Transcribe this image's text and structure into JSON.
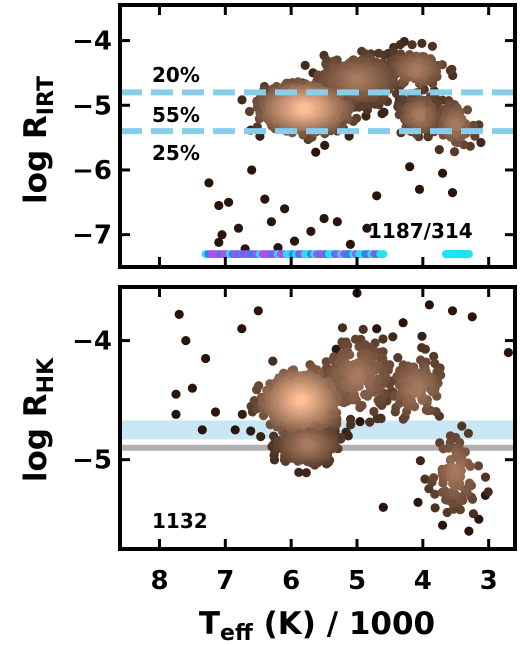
{
  "chart_data": [
    {
      "type": "scatter",
      "panel": "top",
      "ylabel": "log R",
      "ylabel_sub": "IRT",
      "xlabel": "",
      "xlim": [
        8.6,
        2.6
      ],
      "ylim": [
        -7.5,
        -3.45
      ],
      "xticks": [
        "8",
        "7",
        "6",
        "5",
        "4",
        "3"
      ],
      "yticks": [
        -4,
        -5,
        -6,
        -7
      ],
      "ytick_labels": [
        "−4",
        "−5",
        "−6",
        "−7"
      ],
      "reference_lines": [
        {
          "y": -4.8,
          "style": "dashed",
          "color": "#87ceeb"
        },
        {
          "y": -5.4,
          "style": "dashed",
          "color": "#87ceeb"
        }
      ],
      "annotations": [
        "20%",
        "55%",
        "25%",
        "1187/314"
      ],
      "density_clusters": [
        {
          "teff": 5.8,
          "value": -5.05,
          "spread_x": 0.5,
          "spread_y": 0.28,
          "n": 900
        },
        {
          "teff": 5.0,
          "value": -4.6,
          "spread_x": 0.5,
          "spread_y": 0.3,
          "n": 300
        },
        {
          "teff": 4.1,
          "value": -4.45,
          "spread_x": 0.35,
          "spread_y": 0.25,
          "n": 150
        },
        {
          "teff": 4.05,
          "value": -5.15,
          "spread_x": 0.25,
          "spread_y": 0.25,
          "n": 120
        },
        {
          "teff": 3.5,
          "value": -5.3,
          "spread_x": 0.25,
          "spread_y": 0.3,
          "n": 80
        }
      ],
      "outliers": [
        [
          7.25,
          -6.2
        ],
        [
          7.1,
          -6.55
        ],
        [
          7.05,
          -7.0
        ],
        [
          6.95,
          -6.5
        ],
        [
          6.8,
          -6.9
        ],
        [
          6.6,
          -6.0
        ],
        [
          6.4,
          -6.45
        ],
        [
          6.3,
          -6.8
        ],
        [
          6.1,
          -6.6
        ],
        [
          5.95,
          -7.1
        ],
        [
          5.7,
          -6.95
        ],
        [
          5.5,
          -6.75
        ],
        [
          5.3,
          -6.8
        ],
        [
          5.1,
          -7.15
        ],
        [
          4.85,
          -6.9
        ],
        [
          4.7,
          -6.4
        ],
        [
          4.2,
          -5.95
        ],
        [
          4.05,
          -6.3
        ],
        [
          3.7,
          -6.05
        ],
        [
          3.55,
          -6.35
        ],
        [
          7.1,
          -7.12
        ],
        [
          6.7,
          -7.22
        ],
        [
          6.2,
          -7.2
        ]
      ],
      "flag_strips": [
        {
          "teff_min": 7.3,
          "teff_max": 4.6,
          "value": -7.3,
          "colors": [
            "#1fe3f0",
            "#b04cf0",
            "#3b7bf0"
          ]
        },
        {
          "teff_min": 3.65,
          "teff_max": 3.3,
          "value": -7.3,
          "colors": [
            "#1fe3f0"
          ]
        }
      ]
    },
    {
      "type": "scatter",
      "panel": "bottom",
      "ylabel": "log R",
      "ylabel_sub": "HK",
      "xlabel": "T",
      "xlabel_sub": "eff",
      "xlabel_tail": " (K) / 1000",
      "xlim": [
        8.6,
        2.6
      ],
      "ylim": [
        -5.75,
        -3.55
      ],
      "xticks": [
        "8",
        "7",
        "6",
        "5",
        "4",
        "3"
      ],
      "yticks": [
        -4,
        -5
      ],
      "ytick_labels": [
        "−4",
        "−5"
      ],
      "reference_band": {
        "y_min": -4.83,
        "y_max": -4.67,
        "color": "#c9e6f4"
      },
      "reference_line": {
        "y": -4.9,
        "color": "#b0b0b0"
      },
      "annotations": [
        "1132"
      ],
      "density_clusters": [
        {
          "teff": 5.85,
          "value": -4.5,
          "spread_x": 0.45,
          "spread_y": 0.2,
          "n": 700
        },
        {
          "teff": 5.75,
          "value": -4.87,
          "spread_x": 0.35,
          "spread_y": 0.13,
          "n": 350
        },
        {
          "teff": 5.0,
          "value": -4.3,
          "spread_x": 0.45,
          "spread_y": 0.25,
          "n": 200
        },
        {
          "teff": 4.1,
          "value": -4.4,
          "spread_x": 0.35,
          "spread_y": 0.22,
          "n": 130
        },
        {
          "teff": 3.5,
          "value": -5.1,
          "spread_x": 0.3,
          "spread_y": 0.25,
          "n": 90
        }
      ],
      "outliers": [
        [
          7.7,
          -3.78
        ],
        [
          7.6,
          -4.0
        ],
        [
          7.5,
          -4.4
        ],
        [
          7.75,
          -4.45
        ],
        [
          7.3,
          -4.15
        ],
        [
          7.35,
          -4.75
        ],
        [
          7.15,
          -4.6
        ],
        [
          6.85,
          -4.75
        ],
        [
          6.75,
          -3.9
        ],
        [
          6.5,
          -3.75
        ],
        [
          5.0,
          -3.6
        ],
        [
          4.7,
          -3.9
        ],
        [
          4.3,
          -3.85
        ],
        [
          3.9,
          -3.7
        ],
        [
          3.55,
          -3.75
        ],
        [
          3.25,
          -3.8
        ],
        [
          2.7,
          -4.1
        ],
        [
          4.6,
          -5.4
        ],
        [
          3.7,
          -5.55
        ],
        [
          3.3,
          -5.6
        ],
        [
          3.15,
          -5.5
        ],
        [
          3.05,
          -5.3
        ],
        [
          7.75,
          -4.62
        ]
      ]
    }
  ]
}
